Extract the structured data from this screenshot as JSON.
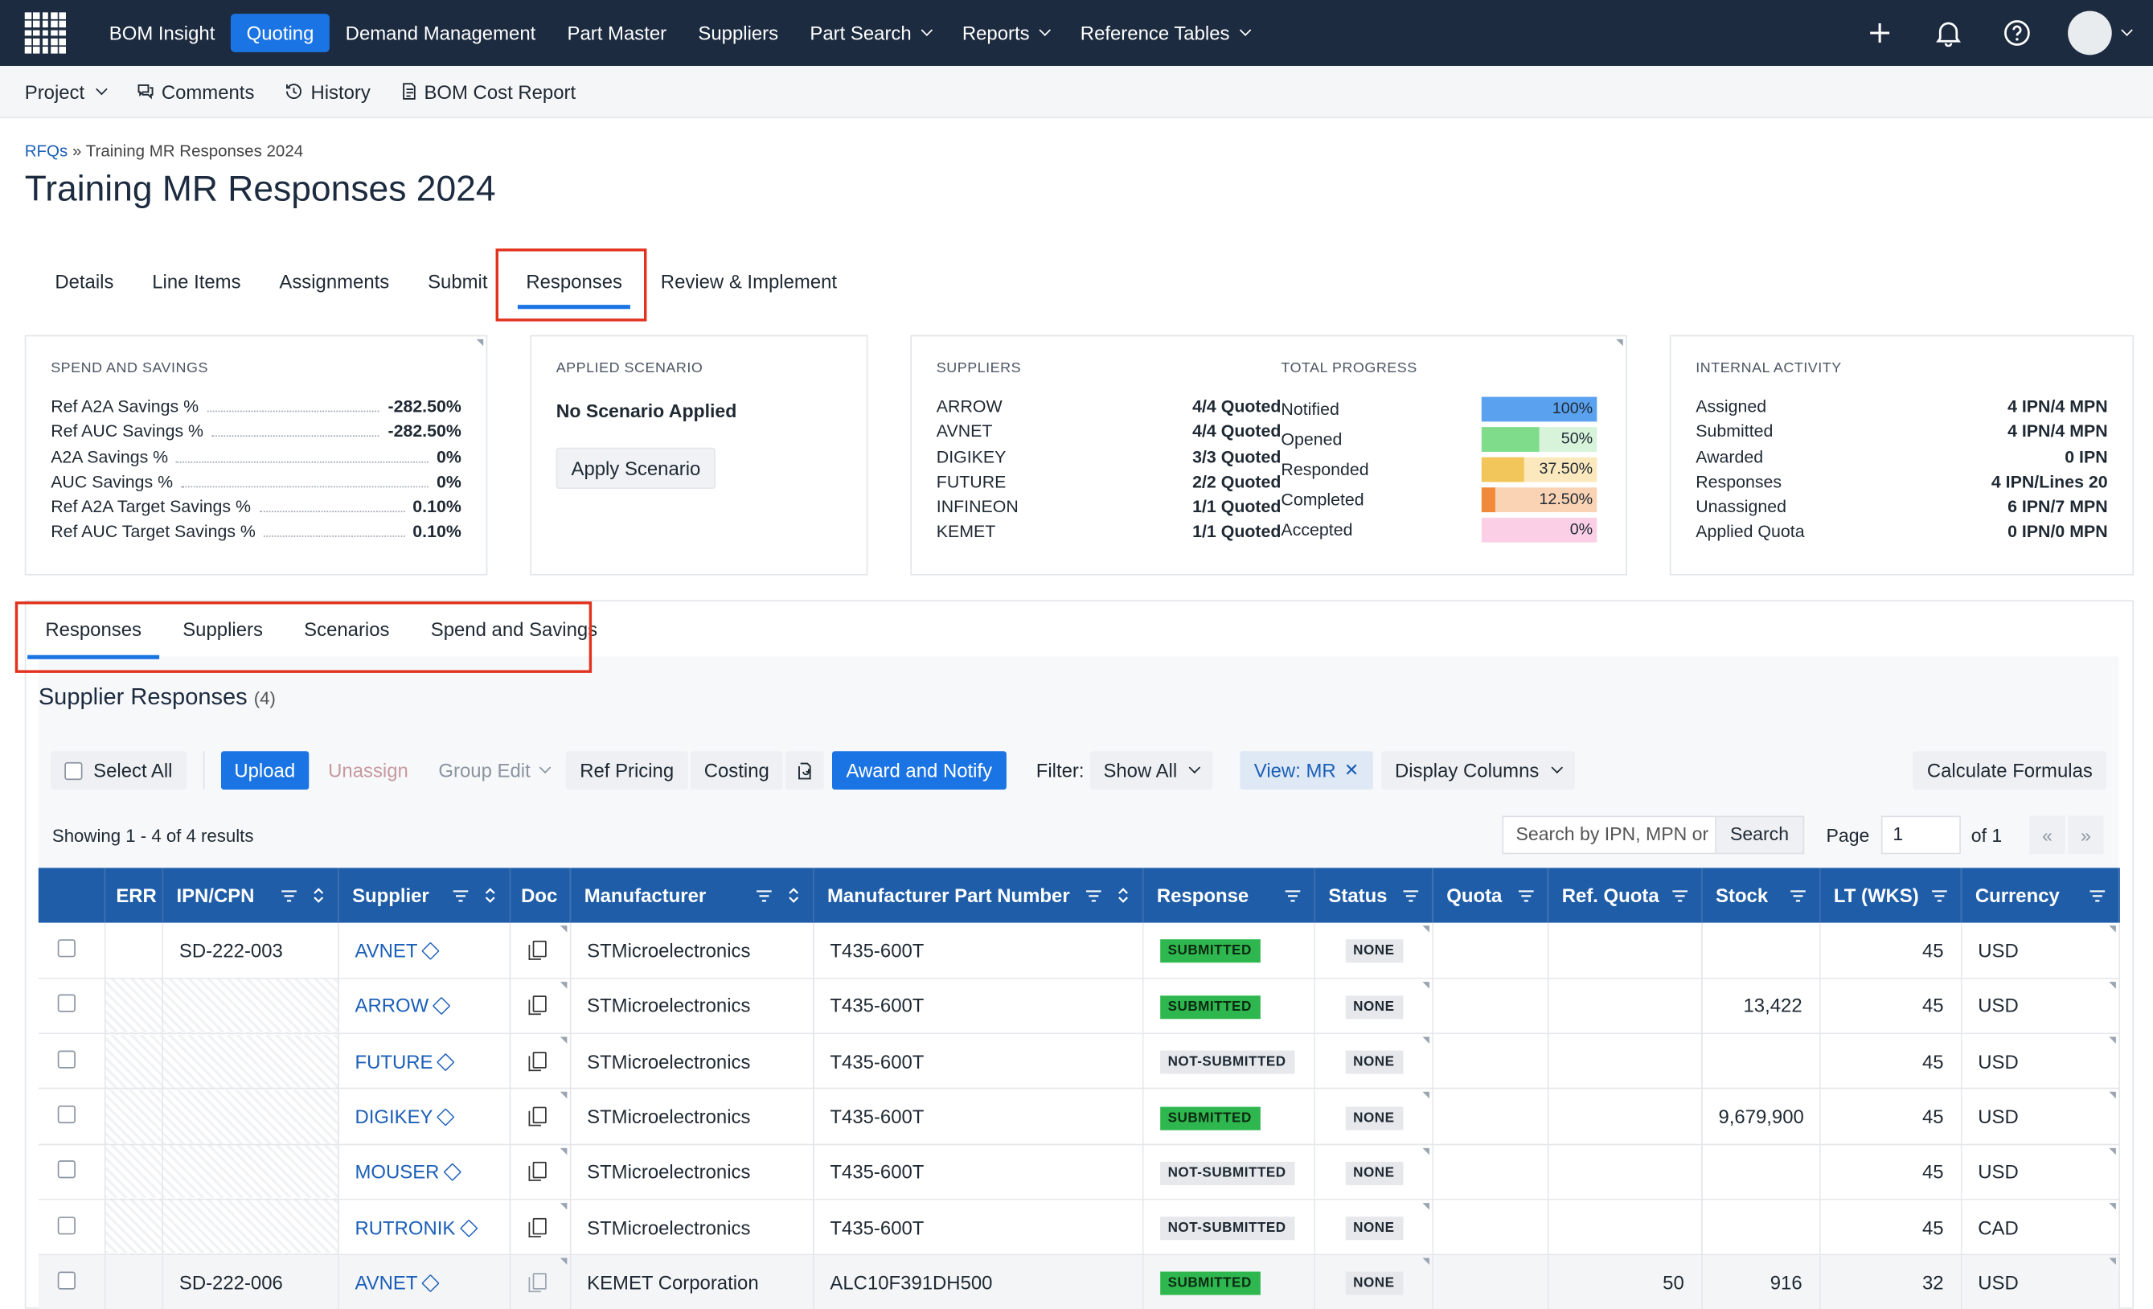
{
  "nav": {
    "items": [
      {
        "label": "BOM Insight",
        "active": false,
        "dropdown": false
      },
      {
        "label": "Quoting",
        "active": true,
        "dropdown": false
      },
      {
        "label": "Demand Management",
        "active": false,
        "dropdown": false
      },
      {
        "label": "Part Master",
        "active": false,
        "dropdown": false
      },
      {
        "label": "Suppliers",
        "active": false,
        "dropdown": false
      },
      {
        "label": "Part Search",
        "active": false,
        "dropdown": true
      },
      {
        "label": "Reports",
        "active": false,
        "dropdown": true
      },
      {
        "label": "Reference Tables",
        "active": false,
        "dropdown": true
      }
    ],
    "right_icons": [
      "plus-icon",
      "bell-icon",
      "help-icon",
      "avatar"
    ]
  },
  "subbar": {
    "project": "Project",
    "comments": "Comments",
    "history": "History",
    "bom_cost_report": "BOM Cost Report"
  },
  "breadcrumb": {
    "root": "RFQs",
    "sep": "»",
    "current": "Training MR Responses 2024"
  },
  "page_title": "Training MR Responses 2024",
  "main_tabs": [
    "Details",
    "Line Items",
    "Assignments",
    "Submit",
    "Responses",
    "Review & Implement"
  ],
  "main_tab_active": "Responses",
  "spend_card": {
    "title": "SPEND AND SAVINGS",
    "rows": [
      {
        "k": "Ref A2A Savings %",
        "v": "-282.50%"
      },
      {
        "k": "Ref AUC Savings %",
        "v": "-282.50%"
      },
      {
        "k": "A2A Savings %",
        "v": "0%"
      },
      {
        "k": "AUC Savings %",
        "v": "0%"
      },
      {
        "k": "Ref A2A Target Savings %",
        "v": "0.10%"
      },
      {
        "k": "Ref AUC Target Savings %",
        "v": "0.10%"
      }
    ]
  },
  "scenario_card": {
    "title": "APPLIED SCENARIO",
    "status": "No Scenario Applied",
    "button": "Apply Scenario"
  },
  "suppliers_card": {
    "title": "SUPPLIERS",
    "rows": [
      {
        "k": "ARROW",
        "v": "4/4 Quoted"
      },
      {
        "k": "AVNET",
        "v": "4/4 Quoted"
      },
      {
        "k": "DIGIKEY",
        "v": "3/3 Quoted"
      },
      {
        "k": "FUTURE",
        "v": "2/2 Quoted"
      },
      {
        "k": "INFINEON",
        "v": "1/1 Quoted"
      },
      {
        "k": "KEMET",
        "v": "1/1 Quoted"
      }
    ],
    "progress_title": "TOTAL PROGRESS",
    "progress": [
      {
        "label": "Notified",
        "value": "100%",
        "fill": 1.0,
        "color": "#5aa2f0",
        "bg": "#cfe3fa"
      },
      {
        "label": "Opened",
        "value": "50%",
        "fill": 0.5,
        "color": "#7fdc8a",
        "bg": "#d7f4da"
      },
      {
        "label": "Responded",
        "value": "37.50%",
        "fill": 0.375,
        "color": "#f2c65a",
        "bg": "#fbe9bd"
      },
      {
        "label": "Completed",
        "value": "12.50%",
        "fill": 0.125,
        "color": "#f08a3a",
        "bg": "#fad3b4"
      },
      {
        "label": "Accepted",
        "value": "0%",
        "fill": 0.0,
        "color": "#f29ac8",
        "bg": "#fbd0e6"
      }
    ]
  },
  "activity_card": {
    "title": "INTERNAL ACTIVITY",
    "rows": [
      {
        "k": "Assigned",
        "v": "4 IPN/4 MPN"
      },
      {
        "k": "Submitted",
        "v": "4 IPN/4 MPN"
      },
      {
        "k": "Awarded",
        "v": "0 IPN"
      },
      {
        "k": "Responses",
        "v": "4 IPN/Lines 20"
      },
      {
        "k": "Unassigned",
        "v": "6 IPN/7 MPN"
      },
      {
        "k": "Applied Quota",
        "v": "0 IPN/0 MPN"
      }
    ]
  },
  "sub_tabs": [
    "Responses",
    "Suppliers",
    "Scenarios",
    "Spend and Savings"
  ],
  "sub_tab_active": "Responses",
  "section": {
    "title": "Supplier Responses",
    "count": "(4)"
  },
  "toolbar": {
    "select_all": "Select All",
    "upload": "Upload",
    "unassign": "Unassign",
    "group_edit": "Group Edit",
    "ref_pricing": "Ref Pricing",
    "costing": "Costing",
    "award_notify": "Award and Notify",
    "filter_label": "Filter:",
    "filter_value": "Show All",
    "view_chip": "View: MR",
    "display_columns": "Display Columns",
    "calculate": "Calculate Formulas"
  },
  "results": {
    "showing": "Showing 1 - 4 of 4 results",
    "search_placeholder": "Search by IPN, MPN or",
    "search_button": "Search",
    "page_label": "Page",
    "page_value": "1",
    "page_of": "of 1",
    "prev": "«",
    "next": "»"
  },
  "columns": [
    "ERR",
    "IPN/CPN",
    "Supplier",
    "Doc",
    "Manufacturer",
    "Manufacturer Part Number",
    "Response",
    "Status",
    "Quota",
    "Ref. Quota",
    "Stock",
    "LT (WKS)",
    "Currency"
  ],
  "rows": [
    {
      "ipn": "SD-222-003",
      "supplier": "AVNET",
      "manufacturer": "STMicroelectronics",
      "mpn": "T435-600T",
      "response": "SUBMITTED",
      "status": "NONE",
      "quota": "",
      "ref_quota": "",
      "stock": "",
      "lt": "45",
      "currency": "USD"
    },
    {
      "ipn": "",
      "supplier": "ARROW",
      "manufacturer": "STMicroelectronics",
      "mpn": "T435-600T",
      "response": "SUBMITTED",
      "status": "NONE",
      "quota": "",
      "ref_quota": "",
      "stock": "13,422",
      "lt": "45",
      "currency": "USD"
    },
    {
      "ipn": "",
      "supplier": "FUTURE",
      "manufacturer": "STMicroelectronics",
      "mpn": "T435-600T",
      "response": "NOT-SUBMITTED",
      "status": "NONE",
      "quota": "",
      "ref_quota": "",
      "stock": "",
      "lt": "45",
      "currency": "USD"
    },
    {
      "ipn": "",
      "supplier": "DIGIKEY",
      "manufacturer": "STMicroelectronics",
      "mpn": "T435-600T",
      "response": "SUBMITTED",
      "status": "NONE",
      "quota": "",
      "ref_quota": "",
      "stock": "9,679,900",
      "lt": "45",
      "currency": "USD"
    },
    {
      "ipn": "",
      "supplier": "MOUSER",
      "manufacturer": "STMicroelectronics",
      "mpn": "T435-600T",
      "response": "NOT-SUBMITTED",
      "status": "NONE",
      "quota": "",
      "ref_quota": "",
      "stock": "",
      "lt": "45",
      "currency": "USD"
    },
    {
      "ipn": "",
      "supplier": "RUTRONIK",
      "manufacturer": "STMicroelectronics",
      "mpn": "T435-600T",
      "response": "NOT-SUBMITTED",
      "status": "NONE",
      "quota": "",
      "ref_quota": "",
      "stock": "",
      "lt": "45",
      "currency": "CAD"
    },
    {
      "ipn": "SD-222-006",
      "supplier": "AVNET",
      "manufacturer": "KEMET Corporation",
      "mpn": "ALC10F391DH500",
      "response": "SUBMITTED",
      "status": "NONE",
      "quota": "",
      "ref_quota": "50",
      "stock": "916",
      "lt": "32",
      "currency": "USD"
    }
  ]
}
